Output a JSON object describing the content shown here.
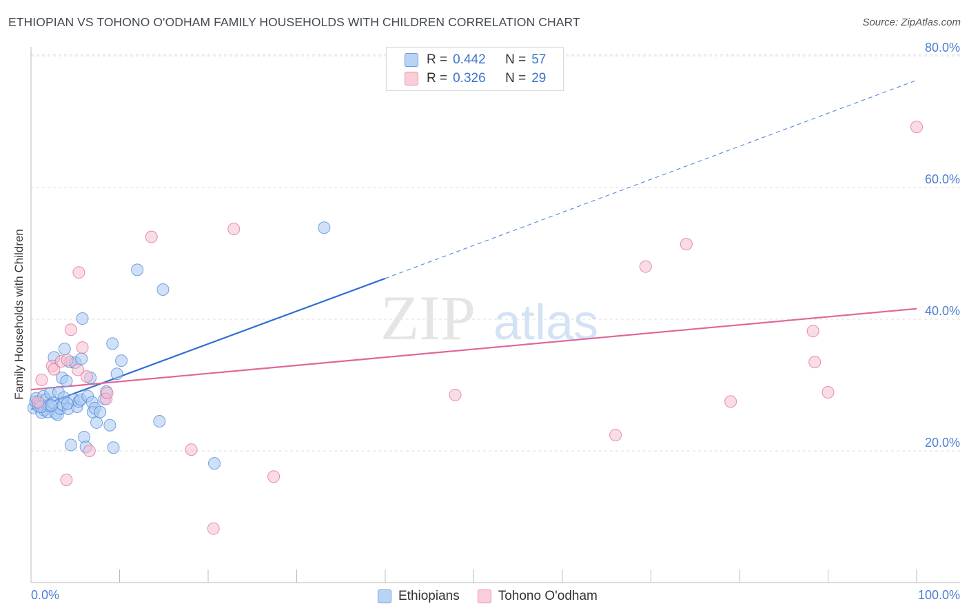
{
  "header": {
    "title": "ETHIOPIAN VS TOHONO O'ODHAM FAMILY HOUSEHOLDS WITH CHILDREN CORRELATION CHART",
    "source": "Source: ZipAtlas.com"
  },
  "watermark": {
    "zip": "ZIP",
    "atlas": "atlas"
  },
  "legend": {
    "rows": [
      {
        "r_label": "R =",
        "r_value": "0.442",
        "n_label": "N =",
        "n_value": "57"
      },
      {
        "r_label": "R =",
        "r_value": "0.326",
        "n_label": "N =",
        "n_value": "29"
      }
    ]
  },
  "colors": {
    "ethiopians": "#4a86d8",
    "ethiopians_fill": "#a9c8f0",
    "tohono": "#e06b95",
    "tohono_fill": "#f6bfd0",
    "axis_text": "#4a7fd0",
    "grid": "#dddddd"
  },
  "chart_data": {
    "type": "scatter",
    "title": "ETHIOPIAN VS TOHONO O'ODHAM FAMILY HOUSEHOLDS WITH CHILDREN CORRELATION CHART",
    "xlabel": "",
    "ylabel": "Family Households with Children",
    "xlim": [
      0,
      100
    ],
    "ylim": [
      0,
      82
    ],
    "x_tick_labels": [
      "0.0%",
      "100.0%"
    ],
    "y_ticks": [
      20,
      40,
      60,
      80
    ],
    "y_tick_labels": [
      "20.0%",
      "40.0%",
      "60.0%",
      "80.0%"
    ],
    "series": [
      {
        "name": "Ethiopians",
        "r": 0.442,
        "n": 57,
        "trend": {
          "x0": 0,
          "y0": 26.3,
          "x1": 40,
          "y1": 46.2,
          "dashed_to_x": 100,
          "dashed_to_y": 76.3
        },
        "points": [
          [
            0.3,
            26.5
          ],
          [
            0.5,
            27.5
          ],
          [
            0.6,
            28.0
          ],
          [
            0.8,
            26.8
          ],
          [
            1.0,
            27.2
          ],
          [
            1.2,
            25.8
          ],
          [
            1.4,
            28.3
          ],
          [
            1.5,
            26.2
          ],
          [
            1.7,
            27.8
          ],
          [
            1.9,
            25.9
          ],
          [
            2.0,
            26.9
          ],
          [
            2.2,
            28.8
          ],
          [
            2.5,
            27.3
          ],
          [
            2.6,
            34.2
          ],
          [
            2.8,
            25.7
          ],
          [
            3.0,
            25.5
          ],
          [
            3.1,
            28.9
          ],
          [
            3.3,
            26.4
          ],
          [
            3.5,
            31.1
          ],
          [
            3.6,
            27.0
          ],
          [
            3.7,
            28.1
          ],
          [
            3.8,
            35.5
          ],
          [
            4.0,
            30.6
          ],
          [
            4.2,
            26.4
          ],
          [
            4.4,
            33.5
          ],
          [
            4.5,
            20.9
          ],
          [
            4.8,
            27.8
          ],
          [
            5.0,
            33.4
          ],
          [
            5.2,
            26.7
          ],
          [
            5.4,
            27.5
          ],
          [
            5.6,
            27.8
          ],
          [
            5.7,
            34.0
          ],
          [
            5.8,
            40.1
          ],
          [
            6.0,
            22.1
          ],
          [
            6.2,
            20.6
          ],
          [
            6.4,
            28.3
          ],
          [
            6.7,
            31.1
          ],
          [
            6.9,
            27.4
          ],
          [
            7.0,
            25.9
          ],
          [
            7.2,
            26.5
          ],
          [
            7.4,
            24.3
          ],
          [
            7.8,
            25.9
          ],
          [
            8.3,
            27.9
          ],
          [
            8.5,
            29.0
          ],
          [
            8.9,
            23.9
          ],
          [
            9.2,
            36.3
          ],
          [
            9.3,
            20.5
          ],
          [
            9.7,
            31.7
          ],
          [
            10.2,
            33.7
          ],
          [
            12.0,
            47.5
          ],
          [
            14.9,
            44.5
          ],
          [
            14.5,
            24.5
          ],
          [
            20.7,
            18.1
          ],
          [
            33.1,
            53.9
          ],
          [
            1.1,
            26.7
          ],
          [
            2.3,
            26.9
          ],
          [
            4.1,
            27.2
          ]
        ]
      },
      {
        "name": "Tohono O'odham",
        "r": 0.326,
        "n": 29,
        "trend": {
          "x0": 0,
          "y0": 29.3,
          "x1": 100,
          "y1": 41.6
        },
        "points": [
          [
            0.8,
            27.4
          ],
          [
            1.2,
            30.8
          ],
          [
            2.4,
            32.9
          ],
          [
            2.6,
            32.4
          ],
          [
            3.4,
            33.6
          ],
          [
            4.0,
            15.6
          ],
          [
            4.5,
            38.4
          ],
          [
            5.3,
            32.3
          ],
          [
            5.4,
            47.1
          ],
          [
            5.8,
            35.7
          ],
          [
            6.3,
            31.3
          ],
          [
            6.6,
            20.0
          ],
          [
            8.5,
            27.9
          ],
          [
            8.6,
            28.8
          ],
          [
            13.6,
            52.5
          ],
          [
            18.1,
            20.2
          ],
          [
            20.6,
            8.2
          ],
          [
            22.9,
            53.7
          ],
          [
            27.4,
            16.1
          ],
          [
            47.9,
            28.5
          ],
          [
            66.0,
            22.4
          ],
          [
            69.4,
            48.0
          ],
          [
            74.0,
            51.4
          ],
          [
            79.0,
            27.5
          ],
          [
            88.3,
            38.2
          ],
          [
            88.5,
            33.5
          ],
          [
            90.0,
            28.9
          ],
          [
            100.0,
            69.2
          ],
          [
            4.1,
            33.8
          ]
        ]
      }
    ]
  },
  "bottom_legend": {
    "items": [
      {
        "label": "Ethiopians"
      },
      {
        "label": "Tohono O'odham"
      }
    ]
  }
}
